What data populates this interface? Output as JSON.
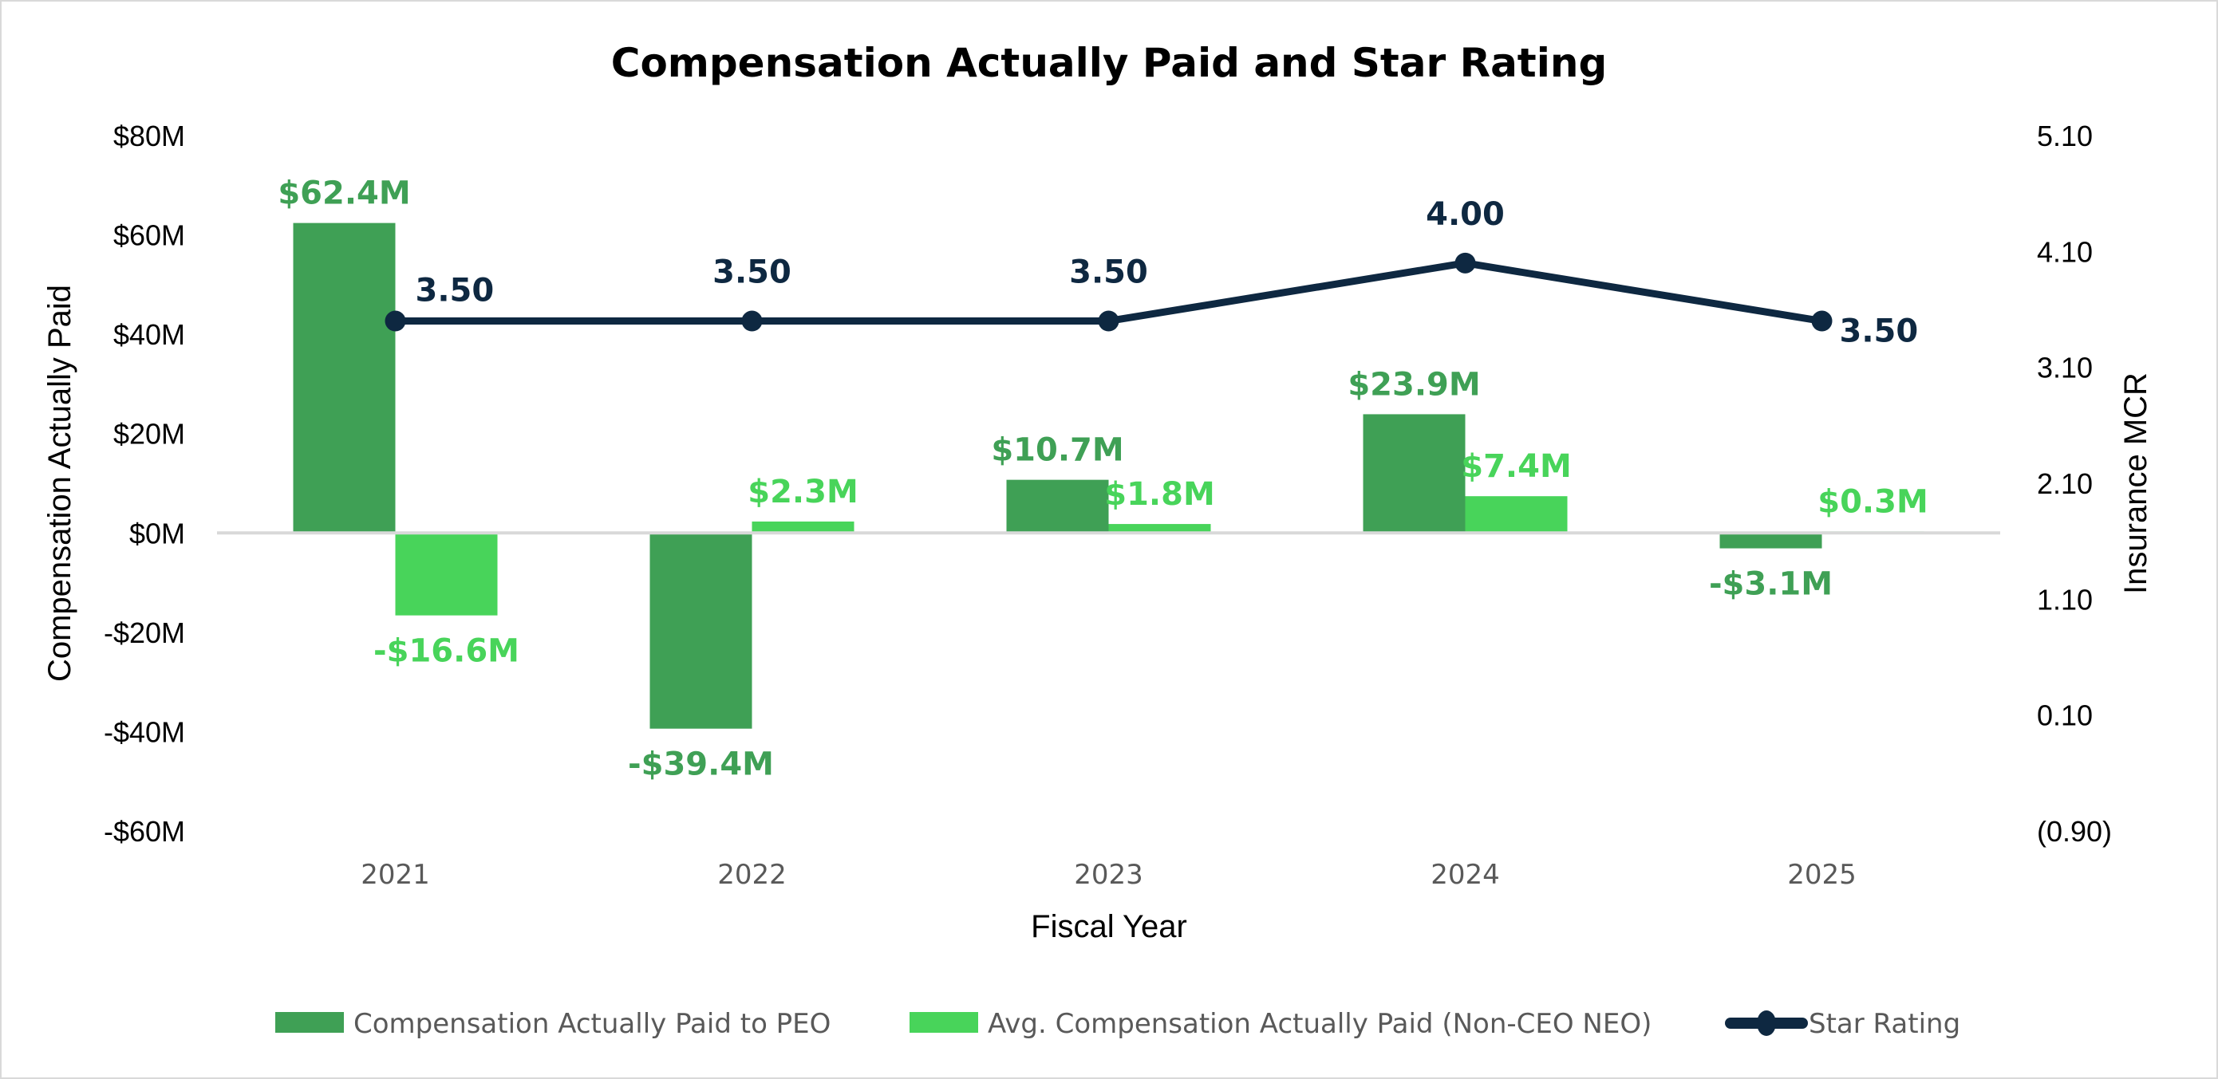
{
  "chart_data": {
    "type": "bar",
    "title": "Compensation Actually Paid and Star Rating",
    "xlabel": "Fiscal Year",
    "ylabel": "Compensation Actually Paid",
    "y2label": "Insurance MCR",
    "categories": [
      "2021",
      "2022",
      "2023",
      "2024",
      "2025"
    ],
    "ylim": [
      -60,
      80
    ],
    "yticks": [
      80,
      60,
      40,
      20,
      0,
      -20,
      -40,
      -60
    ],
    "ytick_labels": [
      "$80M",
      "$60M",
      "$40M",
      "$20M",
      "$0M",
      "-$20M",
      "-$40M",
      "-$60M"
    ],
    "y2lim": [
      -0.9,
      5.1
    ],
    "y2ticks": [
      5.1,
      4.1,
      3.1,
      2.1,
      1.1,
      0.1,
      -0.9
    ],
    "y2tick_labels": [
      "5.10",
      "4.10",
      "3.10",
      "2.10",
      "1.10",
      "0.10",
      "(0.90)"
    ],
    "grid": false,
    "legend_position": "bottom",
    "series": [
      {
        "name": "Compensation Actually Paid to PEO",
        "type": "bar",
        "axis": "left",
        "color": "#3fa055",
        "values": [
          62.4,
          -39.4,
          10.7,
          23.9,
          -3.1
        ],
        "labels": [
          "$62.4M",
          "-$39.4M",
          "$10.7M",
          "$23.9M",
          "-$3.1M"
        ]
      },
      {
        "name": "Avg. Compensation Actually Paid (Non-CEO NEO)",
        "type": "bar",
        "axis": "left",
        "color": "#48d45a",
        "values": [
          -16.6,
          2.3,
          1.8,
          7.4,
          0.3
        ],
        "labels": [
          "-$16.6M",
          "$2.3M",
          "$1.8M",
          "$7.4M",
          "$0.3M"
        ]
      },
      {
        "name": "Star Rating",
        "type": "line",
        "axis": "right",
        "color": "#0e2841",
        "values": [
          3.5,
          3.5,
          3.5,
          4.0,
          3.5
        ],
        "labels": [
          "3.50",
          "3.50",
          "3.50",
          "4.00",
          "3.50"
        ]
      }
    ]
  }
}
